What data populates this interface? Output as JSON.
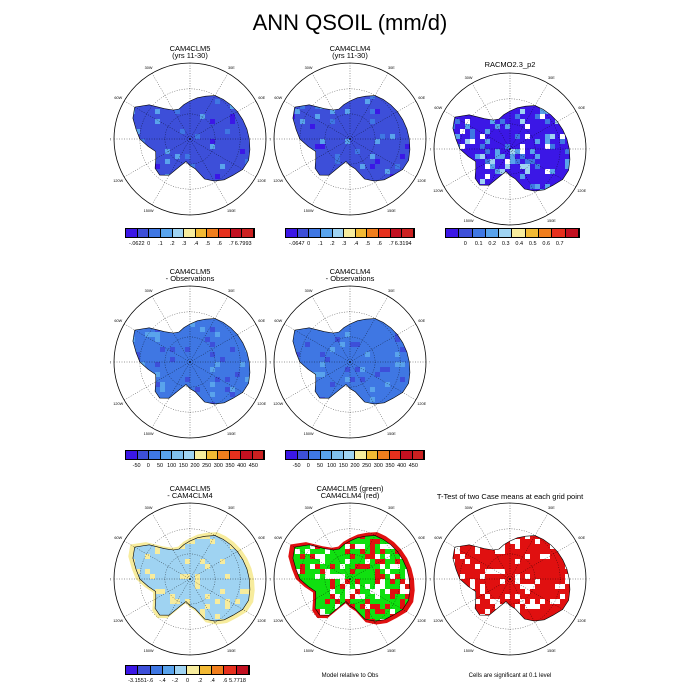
{
  "page_title": "ANN QSOIL (mm/d)",
  "lon_labels": [
    "0",
    "30E",
    "60E",
    "90E",
    "120E",
    "150E",
    "180",
    "150W",
    "120W",
    "90W",
    "60W",
    "30W"
  ],
  "panels": [
    {
      "id": "p1",
      "title1": "CAM4CLM5",
      "title2": "(yrs 11-30)",
      "fill": "blue",
      "col": 0,
      "row": 0
    },
    {
      "id": "p2",
      "title1": "CAM4CLM4",
      "title2": "(yrs 11-30)",
      "fill": "blue",
      "col": 1,
      "row": 0
    },
    {
      "id": "p3",
      "title1": "RACMO2.3_p2",
      "title2": "",
      "fill": "blue-racmo",
      "col": 2,
      "row": 0
    },
    {
      "id": "p4",
      "title1": "CAM4CLM5",
      "title2": "- Observations",
      "fill": "mid-blue",
      "col": 0,
      "row": 1
    },
    {
      "id": "p5",
      "title1": "CAM4CLM4",
      "title2": "- Observations",
      "fill": "mid-blue",
      "col": 1,
      "row": 1
    },
    {
      "id": "p6",
      "title1": "CAM4CLM5",
      "title2": "- CAM4CLM4",
      "fill": "diff",
      "col": 0,
      "row": 2
    },
    {
      "id": "p7",
      "title1": "CAM4CLM5 (green)",
      "title2": "CAM4CLM4 (red)",
      "fill": "green-red",
      "col": 1,
      "row": 2
    },
    {
      "id": "p8",
      "title1": "T-Test of two Case means at each grid point",
      "title2": "",
      "fill": "red",
      "col": 2,
      "row": 2
    }
  ],
  "colorbars": [
    {
      "id": "cb1",
      "labels": [
        "-.0622",
        "0",
        ".1",
        ".2",
        ".3",
        ".4",
        ".5",
        ".6",
        ".7",
        "6.7993"
      ],
      "colors": [
        "#3b17e6",
        "#3d4fd9",
        "#3f77e3",
        "#59a3ec",
        "#9fd3f2",
        "#f7ec9d",
        "#f2b934",
        "#f07e1d",
        "#e6301d",
        "#c21020",
        "#cc2020"
      ]
    },
    {
      "id": "cb2",
      "labels": [
        "-.0647",
        "0",
        ".1",
        ".2",
        ".3",
        ".4",
        ".5",
        ".6",
        ".7",
        "6.3194"
      ],
      "colors": [
        "#3b17e6",
        "#3d4fd9",
        "#3f77e3",
        "#59a3ec",
        "#9fd3f2",
        "#f7ec9d",
        "#f2b934",
        "#f07e1d",
        "#e6301d",
        "#c21020",
        "#cc2020"
      ]
    },
    {
      "id": "cb3",
      "labels": [
        "0",
        "0.1",
        "0.2",
        "0.3",
        "0.4",
        "0.5",
        "0.6",
        "0.7"
      ],
      "colors": [
        "#3b17e6",
        "#3d4fd9",
        "#3f77e3",
        "#59a3ec",
        "#9fd3f2",
        "#f7ec9d",
        "#f2b934",
        "#f07e1d",
        "#e6301d",
        "#c21020"
      ]
    },
    {
      "id": "cb4",
      "labels": [
        "-50",
        "0",
        "50",
        "100",
        "150",
        "200",
        "250",
        "300",
        "350",
        "400",
        "450"
      ],
      "colors": [
        "#3b17e6",
        "#3d4fd9",
        "#3f77e3",
        "#59a3ec",
        "#7fc0ee",
        "#9fd3f2",
        "#f7ec9d",
        "#f2b934",
        "#f07e1d",
        "#e6301d",
        "#c21020",
        "#cc2020"
      ]
    },
    {
      "id": "cb5",
      "labels": [
        "-50",
        "0",
        "50",
        "100",
        "150",
        "200",
        "250",
        "300",
        "350",
        "400",
        "450"
      ],
      "colors": [
        "#3b17e6",
        "#3d4fd9",
        "#3f77e3",
        "#59a3ec",
        "#7fc0ee",
        "#9fd3f2",
        "#f7ec9d",
        "#f2b934",
        "#f07e1d",
        "#e6301d",
        "#c21020",
        "#cc2020"
      ]
    },
    {
      "id": "cb6",
      "labels": [
        "-3.1551",
        "-.6",
        "-.4",
        "-.2",
        "0",
        ".2",
        ".4",
        ".6",
        "5.7718"
      ],
      "colors": [
        "#3b17e6",
        "#3d4fd9",
        "#3f77e3",
        "#59a3ec",
        "#9fd3f2",
        "#f7ec9d",
        "#f2b934",
        "#f07e1d",
        "#e6301d",
        "#c21020"
      ]
    }
  ],
  "footnotes": {
    "green_red": "Model relative to Obs",
    "ttest": "Cells are significant at 0.1 level"
  }
}
